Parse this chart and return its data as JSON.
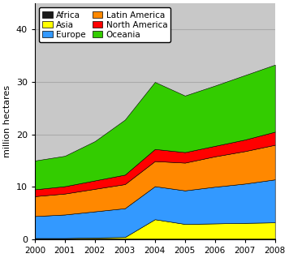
{
  "years": [
    2000,
    2001,
    2002,
    2003,
    2004,
    2005,
    2006,
    2007,
    2008
  ],
  "stack_order": [
    "Africa",
    "Asia",
    "Europe",
    "Latin America",
    "North America",
    "Oceania"
  ],
  "colors": {
    "Africa": "#1a1a1a",
    "Asia": "#ffff00",
    "Europe": "#3399ff",
    "Latin America": "#ff8800",
    "North America": "#ff0000",
    "Oceania": "#33cc00"
  },
  "data": {
    "Africa": [
      0.1,
      0.1,
      0.1,
      0.1,
      0.1,
      0.1,
      0.1,
      0.1,
      0.1
    ],
    "Asia": [
      0.1,
      0.1,
      0.2,
      0.3,
      3.7,
      2.8,
      2.9,
      3.0,
      3.1
    ],
    "Europe": [
      4.2,
      4.5,
      5.0,
      5.5,
      6.3,
      6.4,
      7.0,
      7.5,
      8.2
    ],
    "Latin America": [
      3.8,
      4.0,
      4.3,
      4.6,
      4.8,
      5.3,
      5.8,
      6.2,
      6.6
    ],
    "North America": [
      1.3,
      1.4,
      1.6,
      1.8,
      2.3,
      2.0,
      2.0,
      2.2,
      2.5
    ],
    "Oceania": [
      5.5,
      5.8,
      7.5,
      10.5,
      12.8,
      10.8,
      11.5,
      12.3,
      12.8
    ]
  },
  "ylabel": "million hectares",
  "ylim": [
    0,
    45
  ],
  "yticks": [
    0,
    10,
    20,
    30,
    40
  ],
  "legend_left_col": [
    "Africa",
    "Europe",
    "North America"
  ],
  "legend_right_col": [
    "Asia",
    "Latin America",
    "Oceania"
  ],
  "bg_color": "#c8c8c8",
  "grid_color": "#aaaaaa",
  "fig_bg": "#ffffff"
}
